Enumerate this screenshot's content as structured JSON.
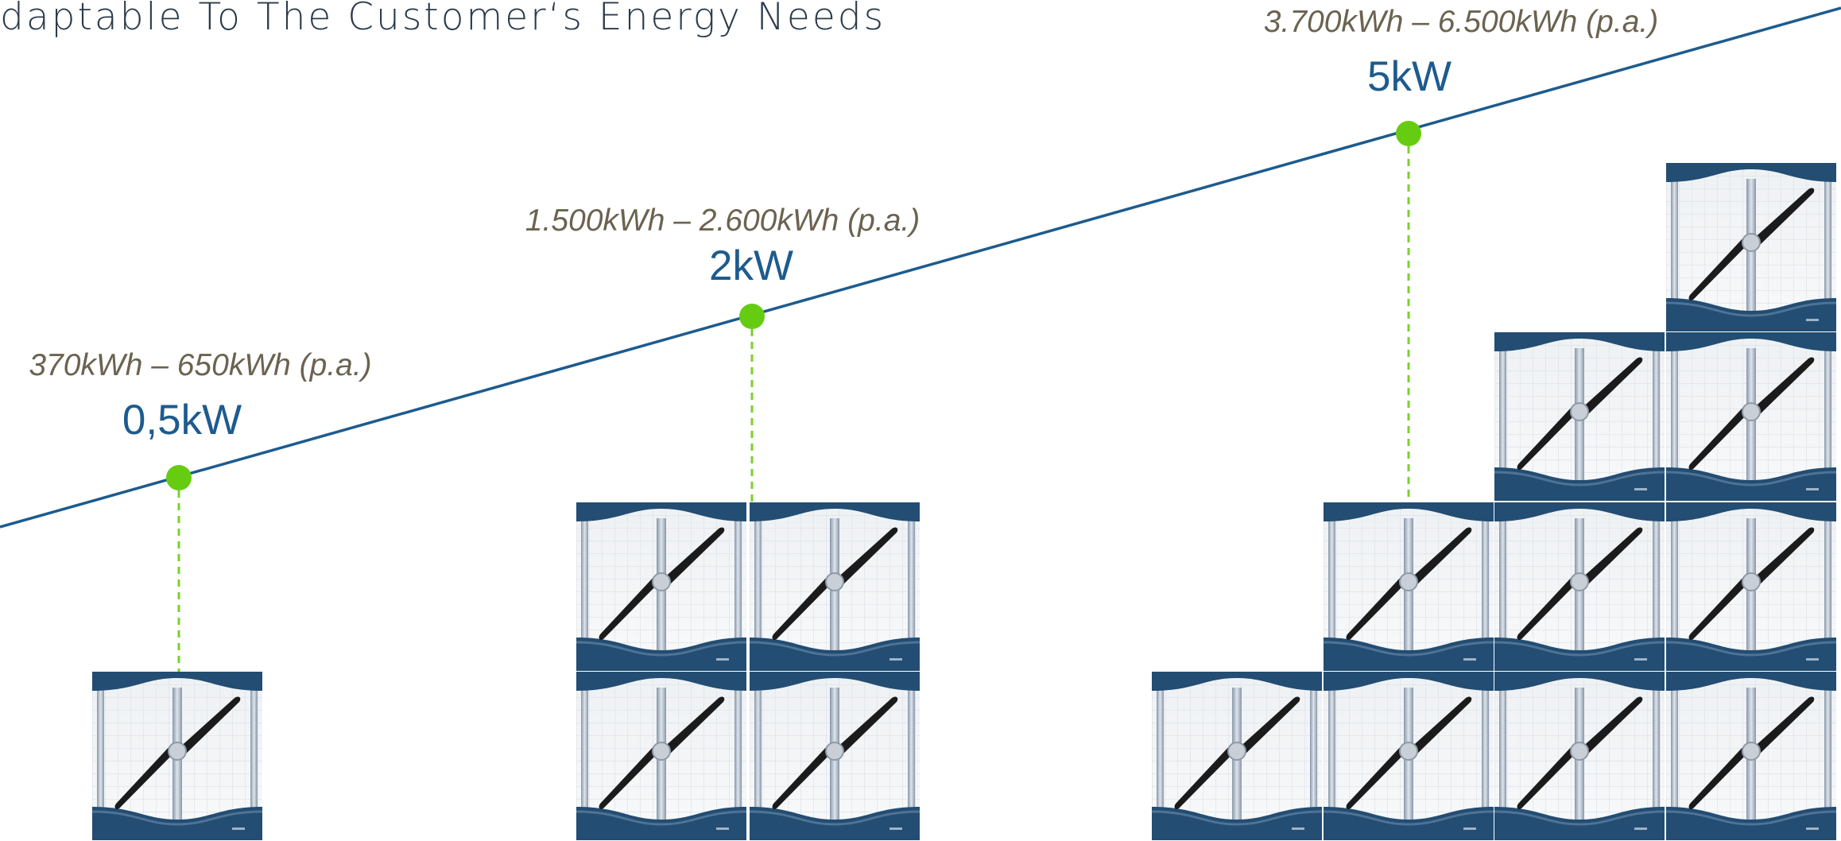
{
  "title": "daptable To The Customer‘s Energy Needs",
  "colors": {
    "trend_line": "#1d5b8e",
    "marker": "#66cc11",
    "connector": "#7bd02a",
    "turbine_band": "#234d72",
    "turbine_frame": "#a9b8c8",
    "blade": "#1b1b1b",
    "energy_text": "#6b6350",
    "power_text": "#1d5b8e"
  },
  "tiers": [
    {
      "power": "0,5kW",
      "energy": "370kWh – 650kWh (p.a.)",
      "modules": 1
    },
    {
      "power": "2kW",
      "energy": "1.500kWh – 2.600kWh (p.a.)",
      "modules": 4
    },
    {
      "power": "5kW",
      "energy": "3.700kWh – 6.500kWh (p.a.)",
      "modules": 10
    }
  ],
  "icons": {
    "module": "wind-turbine-module-icon",
    "marker": "dot-marker-icon"
  }
}
